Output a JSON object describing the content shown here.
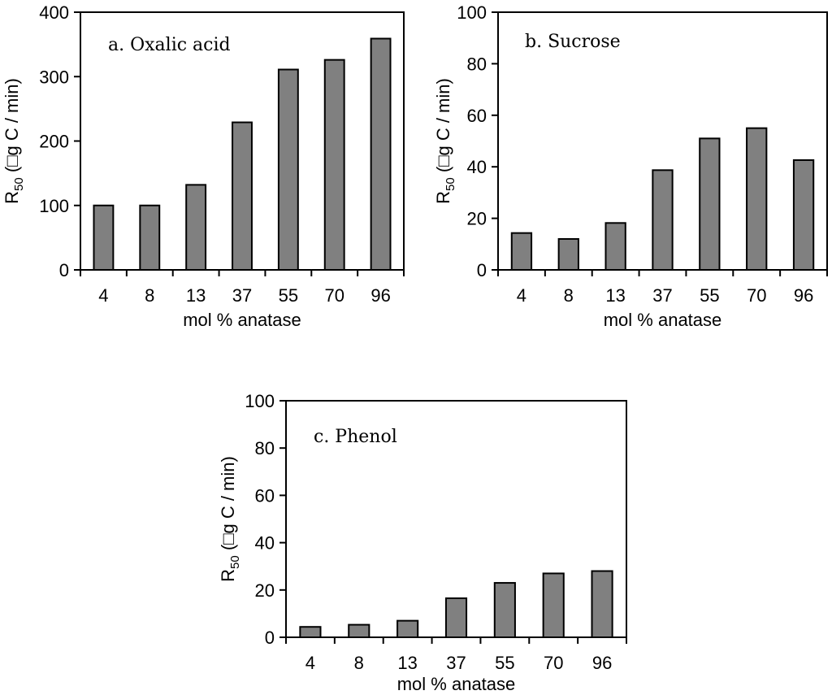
{
  "chart_data": [
    {
      "type": "bar",
      "title": "a. Oxalic acid",
      "categories": [
        "4",
        "8",
        "13",
        "37",
        "55",
        "70",
        "96"
      ],
      "values": [
        100,
        100,
        132,
        229,
        311,
        326,
        359
      ],
      "xlabel": "mol % anatase",
      "ylabel_main": "R",
      "ylabel_sub": "50",
      "ylabel_rest": " (□g C / min)",
      "ylim": [
        0,
        400
      ],
      "yticks": [
        0,
        100,
        200,
        300,
        400
      ],
      "grid": false
    },
    {
      "type": "bar",
      "title": "b. Sucrose",
      "categories": [
        "4",
        "8",
        "13",
        "37",
        "55",
        "70",
        "96"
      ],
      "values": [
        14.3,
        12,
        18.2,
        38.7,
        51,
        55,
        42.6
      ],
      "xlabel": "mol % anatase",
      "ylabel_main": "R",
      "ylabel_sub": "50",
      "ylabel_rest": " (□g C / min)",
      "ylim": [
        0,
        100
      ],
      "yticks": [
        0,
        20,
        40,
        60,
        80,
        100
      ],
      "grid": false
    },
    {
      "type": "bar",
      "title": "c. Phenol",
      "categories": [
        "4",
        "8",
        "13",
        "37",
        "55",
        "70",
        "96"
      ],
      "values": [
        4.4,
        5.3,
        7,
        16.5,
        23,
        27,
        28
      ],
      "xlabel": "mol % anatase",
      "ylabel_main": "R",
      "ylabel_sub": "50",
      "ylabel_rest": " (□g C / min)",
      "ylim": [
        0,
        100
      ],
      "yticks": [
        0,
        20,
        40,
        60,
        80,
        100
      ],
      "grid": false
    }
  ]
}
